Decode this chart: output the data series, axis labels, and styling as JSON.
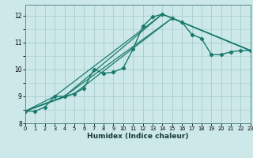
{
  "title": "",
  "xlabel": "Humidex (Indice chaleur)",
  "ylabel": "",
  "bg_color": "#cce8e8",
  "grid_color": "#aacccc",
  "line_color": "#1a7a6e",
  "x_min": 0,
  "x_max": 23,
  "y_min": 8,
  "y_max": 12.4,
  "yticks": [
    8,
    9,
    10,
    11,
    12
  ],
  "xticks": [
    0,
    1,
    2,
    3,
    4,
    5,
    6,
    7,
    8,
    9,
    10,
    11,
    12,
    13,
    14,
    15,
    16,
    17,
    18,
    19,
    20,
    21,
    22,
    23
  ],
  "series": [
    {
      "x": [
        0,
        1,
        2,
        3,
        4,
        5,
        6,
        7,
        8,
        9,
        10,
        11,
        12,
        13,
        14,
        15,
        16,
        17,
        18,
        19,
        20,
        21,
        22,
        23
      ],
      "y": [
        8.45,
        8.45,
        8.6,
        9.0,
        9.0,
        9.1,
        9.3,
        10.0,
        9.85,
        9.9,
        10.05,
        10.75,
        11.6,
        11.95,
        12.05,
        11.9,
        11.75,
        11.3,
        11.15,
        10.55,
        10.55,
        10.65,
        10.7,
        10.7
      ],
      "marker": "D",
      "marker_size": 2.2,
      "linewidth": 1.0
    },
    {
      "x": [
        0,
        3,
        14,
        23
      ],
      "y": [
        8.45,
        9.0,
        12.05,
        10.7
      ],
      "marker": null,
      "linewidth": 0.9
    },
    {
      "x": [
        0,
        4,
        14,
        23
      ],
      "y": [
        8.45,
        9.0,
        12.05,
        10.7
      ],
      "marker": null,
      "linewidth": 0.9
    },
    {
      "x": [
        0,
        4,
        15,
        23
      ],
      "y": [
        8.45,
        9.0,
        11.9,
        10.7
      ],
      "marker": null,
      "linewidth": 0.9
    },
    {
      "x": [
        0,
        5,
        15,
        23
      ],
      "y": [
        8.45,
        9.1,
        11.9,
        10.7
      ],
      "marker": null,
      "linewidth": 0.9
    }
  ]
}
